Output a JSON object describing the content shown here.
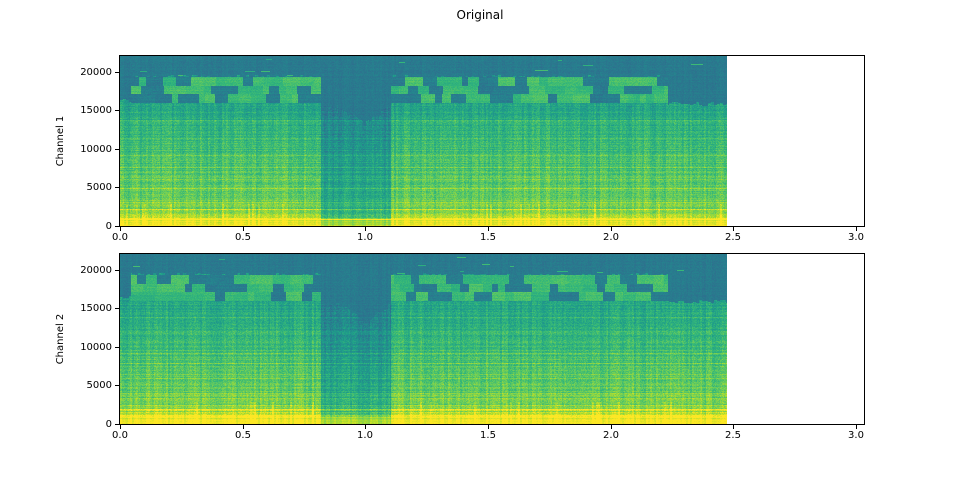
{
  "figure": {
    "title": "Original",
    "background": "#ffffff"
  },
  "colormap": {
    "name": "viridis",
    "stops": [
      "#440154",
      "#482878",
      "#3e4a89",
      "#31688e",
      "#26828e",
      "#1f9e89",
      "#35b779",
      "#6ece58",
      "#b5de2b",
      "#fde725"
    ]
  },
  "chart_data": [
    {
      "type": "heatmap",
      "subtype": "audio-spectrogram",
      "title": "",
      "xlabel": "",
      "ylabel": "Channel 1",
      "x_ticks": [
        "0.0",
        "0.5",
        "1.0",
        "1.5",
        "2.0",
        "2.5",
        "3.0"
      ],
      "x_tick_values": [
        0.0,
        0.5,
        1.0,
        1.5,
        2.0,
        2.5,
        3.0
      ],
      "y_ticks": [
        "0",
        "5000",
        "10000",
        "15000",
        "20000"
      ],
      "y_tick_values": [
        0,
        5000,
        10000,
        15000,
        20000
      ],
      "xlim": [
        0.0,
        3.03
      ],
      "ylim": [
        0,
        22050
      ],
      "grid": false,
      "legend": "none",
      "colormap": "viridis",
      "signal": {
        "duration_s": 2.475,
        "quiet_gap_s": [
          0.82,
          1.105
        ],
        "quiet_funnel_center_s": 1.0,
        "blocky_band_time_s": [
          0.045,
          2.235
        ],
        "lowpass_cutoff_hz": 19300,
        "blocky_band_hz": [
          16000,
          19300
        ],
        "bright_low_band_hz": [
          0,
          900
        ]
      },
      "render": {
        "seed": 1011,
        "duration": 2.475,
        "gap": [
          0.82,
          1.105
        ],
        "funnel": 1.0,
        "blocks": [
          0.045,
          2.235
        ],
        "cutoff_fr": 0.875,
        "band_fr": [
          0.726,
          0.875
        ],
        "base_hi": 0.82,
        "base_slope": 0.32,
        "quiet_drop": 0.16,
        "dark_v": 0.41,
        "yellow_v": 0.96,
        "yellow_quiet_v": 0.84
      }
    },
    {
      "type": "heatmap",
      "subtype": "audio-spectrogram",
      "title": "",
      "xlabel": "",
      "ylabel": "Channel 2",
      "x_ticks": [
        "0.0",
        "0.5",
        "1.0",
        "1.5",
        "2.0",
        "2.5",
        "3.0"
      ],
      "x_tick_values": [
        0.0,
        0.5,
        1.0,
        1.5,
        2.0,
        2.5,
        3.0
      ],
      "y_ticks": [
        "0",
        "5000",
        "10000",
        "15000",
        "20000"
      ],
      "y_tick_values": [
        0,
        5000,
        10000,
        15000,
        20000
      ],
      "xlim": [
        0.0,
        3.03
      ],
      "ylim": [
        0,
        22050
      ],
      "grid": false,
      "legend": "none",
      "colormap": "viridis",
      "signal": {
        "duration_s": 2.475,
        "quiet_gap_s": [
          0.82,
          1.105
        ],
        "quiet_funnel_center_s": 1.0,
        "blocky_band_time_s": [
          0.045,
          2.235
        ],
        "lowpass_cutoff_hz": 19300,
        "blocky_band_hz": [
          16000,
          19300
        ],
        "bright_low_band_hz": [
          0,
          900
        ]
      },
      "render": {
        "seed": 2077,
        "duration": 2.475,
        "gap": [
          0.82,
          1.105
        ],
        "funnel": 1.0,
        "blocks": [
          0.045,
          2.235
        ],
        "cutoff_fr": 0.875,
        "band_fr": [
          0.726,
          0.875
        ],
        "base_hi": 0.82,
        "base_slope": 0.32,
        "quiet_drop": 0.16,
        "dark_v": 0.41,
        "yellow_v": 0.96,
        "yellow_quiet_v": 0.84
      }
    }
  ]
}
